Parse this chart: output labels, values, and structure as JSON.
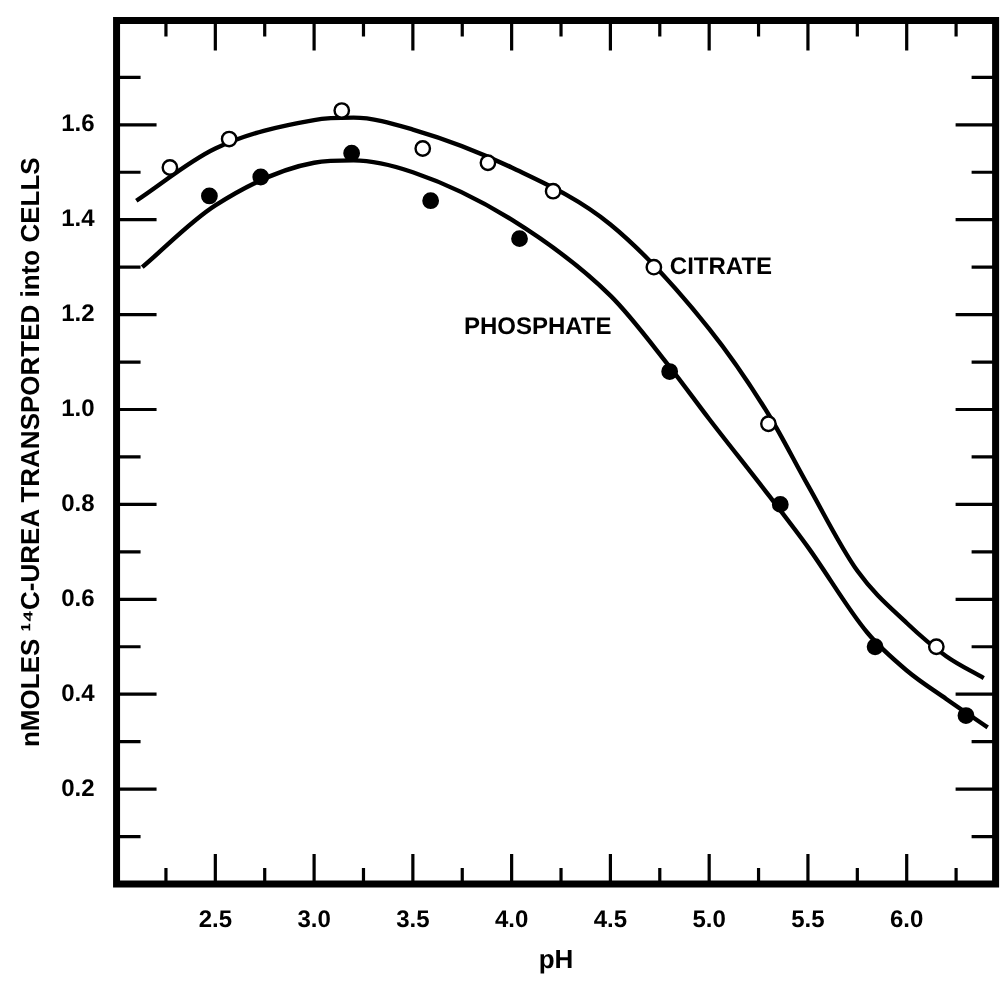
{
  "chart_data": {
    "type": "scatter",
    "xlabel": "pH",
    "ylabel": "nMOLES ¹⁴C-UREA TRANSPORTED into CELLS",
    "xlim": [
      2.0,
      6.45
    ],
    "ylim": [
      0,
      1.82
    ],
    "xticks": [
      {
        "value": 2.25,
        "label": null
      },
      2.5,
      {
        "value": 2.75,
        "label": null
      },
      {
        "value": 3.0,
        "label": "3.0"
      },
      {
        "value": 3.25,
        "label": null
      },
      3.5,
      {
        "value": 3.75,
        "label": null
      },
      {
        "value": 4.0,
        "label": "4.0"
      },
      {
        "value": 4.25,
        "label": null
      },
      4.5,
      {
        "value": 4.75,
        "label": null
      },
      {
        "value": 5.0,
        "label": "5.0"
      },
      {
        "value": 5.25,
        "label": null
      },
      5.5,
      {
        "value": 5.75,
        "label": null
      },
      {
        "value": 6.0,
        "label": "6.0"
      },
      {
        "value": 6.25,
        "label": null
      }
    ],
    "yticks": [
      {
        "value": 0.1,
        "label": null
      },
      0.2,
      {
        "value": 0.3,
        "label": null
      },
      0.4,
      {
        "value": 0.5,
        "label": null
      },
      0.6,
      {
        "value": 0.7,
        "label": null
      },
      0.8,
      {
        "value": 0.9,
        "label": null
      },
      {
        "value": 1.0,
        "label": "1.0"
      },
      {
        "value": 1.1,
        "label": null
      },
      1.2,
      {
        "value": 1.3,
        "label": null
      },
      1.4,
      {
        "value": 1.5,
        "label": null
      },
      1.6,
      {
        "value": 1.7,
        "label": null
      }
    ],
    "grid": false,
    "legend": false,
    "series": [
      {
        "name": "CITRATE",
        "marker": "circle",
        "color": "#ffffff",
        "x": [
          2.27,
          2.57,
          3.14,
          3.55,
          3.88,
          4.21,
          4.72,
          5.3,
          6.15
        ],
        "values": [
          1.51,
          1.57,
          1.63,
          1.55,
          1.52,
          1.46,
          1.3,
          0.97,
          0.5
        ]
      },
      {
        "name": "PHOSPHATE",
        "marker": "circle",
        "color": "#000000",
        "x": [
          2.47,
          2.73,
          3.19,
          3.59,
          4.04,
          4.8,
          5.36,
          5.84,
          6.3
        ],
        "values": [
          1.45,
          1.49,
          1.54,
          1.44,
          1.36,
          1.08,
          0.8,
          0.5,
          0.355
        ]
      },
      {
        "type": "line",
        "marker": "none",
        "line_style": "solid",
        "color": "#000000",
        "x": [
          2.1,
          2.5,
          3.0,
          3.2,
          3.5,
          4.0,
          4.5,
          5.0,
          5.3,
          5.5,
          5.75,
          6.0,
          6.2,
          6.39
        ],
        "values": [
          1.44,
          1.55,
          1.61,
          1.615,
          1.59,
          1.51,
          1.39,
          1.17,
          0.99,
          0.84,
          0.66,
          0.55,
          0.48,
          0.434
        ]
      },
      {
        "type": "line",
        "marker": "none",
        "line_style": "solid",
        "color": "#000000",
        "x": [
          2.13,
          2.5,
          3.0,
          3.2,
          3.5,
          4.0,
          4.5,
          4.8,
          5.0,
          5.3,
          5.5,
          5.8,
          6.0,
          6.2,
          6.41
        ],
        "values": [
          1.3,
          1.43,
          1.52,
          1.525,
          1.5,
          1.4,
          1.24,
          1.09,
          0.98,
          0.82,
          0.71,
          0.53,
          0.45,
          0.39,
          0.33
        ]
      }
    ]
  }
}
